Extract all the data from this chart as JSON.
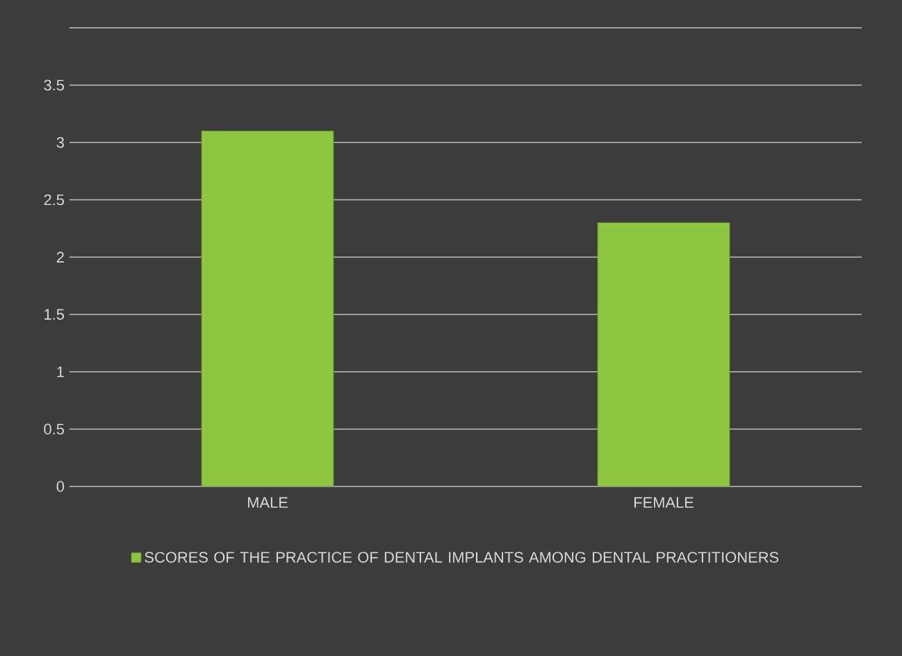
{
  "chart_data": {
    "type": "bar",
    "categories": [
      "MALE",
      "FEMALE"
    ],
    "series": [
      {
        "name": "SCORES OF THE PRACTICE OF DENTAL IMPLANTS AMONG DENTAL PRACTITIONERS",
        "color": "#8dc63f",
        "values": [
          3.1,
          2.3
        ]
      }
    ],
    "ylim": [
      0,
      4
    ],
    "yticks": [
      0,
      0.5,
      1,
      1.5,
      2,
      2.5,
      3,
      3.5,
      {
        "value": 4,
        "label": null
      }
    ],
    "grid": "y",
    "legend": "bottom"
  }
}
